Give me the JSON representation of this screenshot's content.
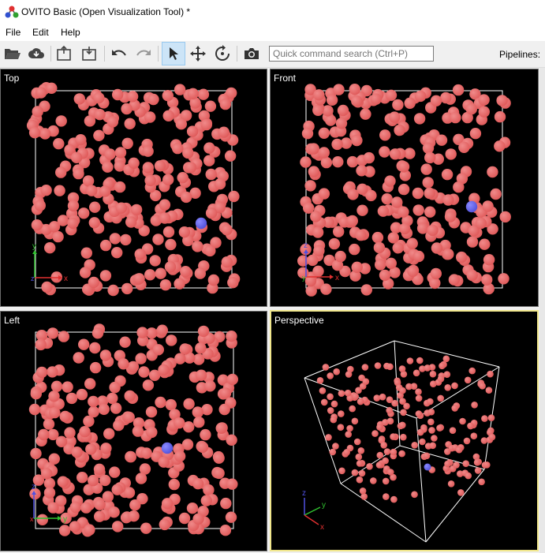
{
  "window": {
    "title": "OVITO Basic (Open Visualization Tool) *"
  },
  "menu": {
    "items": [
      "File",
      "Edit",
      "Help"
    ]
  },
  "toolbar": {
    "buttons": [
      "open-file",
      "load-remote",
      "import",
      "export",
      "undo",
      "redo",
      "selection-mode",
      "pan-mode",
      "orbit-mode",
      "render-active-viewport"
    ],
    "active_button": "selection-mode",
    "search_placeholder": "Quick command search (Ctrl+P)",
    "pipelines_label": "Pipelines:"
  },
  "viewports": [
    {
      "name": "Top",
      "axes": [
        "x",
        "y",
        "z"
      ],
      "active": false
    },
    {
      "name": "Front",
      "axes": [
        "x",
        "z",
        "y"
      ],
      "active": false
    },
    {
      "name": "Left",
      "axes": [
        "y",
        "z",
        "x"
      ],
      "active": false
    },
    {
      "name": "Perspective",
      "axes": [
        "x",
        "y",
        "z"
      ],
      "active": true
    }
  ],
  "colors": {
    "particle": "#e05c5c",
    "particle_highlight": "#f08a8a",
    "selected_particle": "#5555dd",
    "viewport_background": "#000000",
    "cell_edges": "#ffffff",
    "active_viewport_border": "#f0e68c",
    "axis_x": "#e03030",
    "axis_y": "#30c030",
    "axis_z": "#5050e0"
  }
}
